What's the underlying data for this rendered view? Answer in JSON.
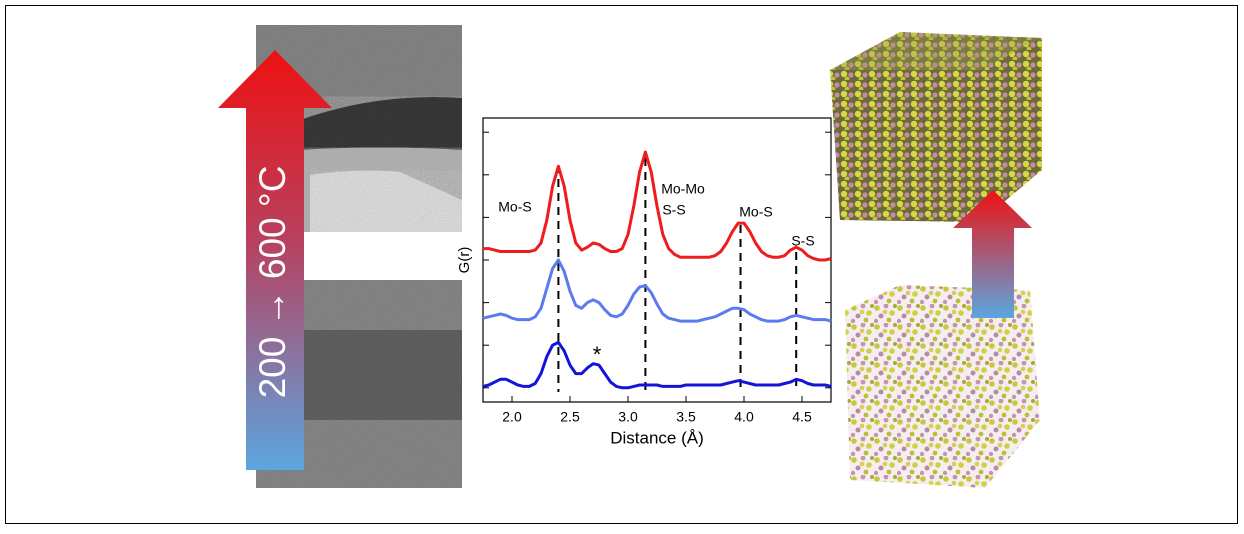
{
  "arrow_label": "200 → 600 °C",
  "chart_data": {
    "type": "line",
    "xlabel": "Distance (Å)",
    "ylabel": "G(r)",
    "xlim": [
      1.75,
      4.75
    ],
    "xticks": [
      {
        "value": 2,
        "label": "2.0"
      },
      2.5,
      {
        "value": 3,
        "label": "3.0"
      },
      3.5,
      {
        "value": 4,
        "label": "4.0"
      },
      4.5
    ],
    "ylim": [
      0,
      10
    ],
    "yticks": [
      0.5,
      2,
      3.5,
      5,
      6.5,
      8,
      9.5
    ],
    "x": [
      1.75,
      1.8,
      1.85,
      1.9,
      1.95,
      2.0,
      2.05,
      2.1,
      2.15,
      2.2,
      2.25,
      2.3,
      2.35,
      2.4,
      2.45,
      2.5,
      2.55,
      2.6,
      2.65,
      2.7,
      2.75,
      2.8,
      2.85,
      2.9,
      2.95,
      3.0,
      3.05,
      3.1,
      3.15,
      3.2,
      3.25,
      3.3,
      3.35,
      3.4,
      3.45,
      3.5,
      3.55,
      3.6,
      3.65,
      3.7,
      3.75,
      3.8,
      3.85,
      3.9,
      3.95,
      4.0,
      4.05,
      4.1,
      4.15,
      4.2,
      4.25,
      4.3,
      4.35,
      4.4,
      4.45,
      4.5,
      4.55,
      4.6,
      4.65,
      4.7,
      4.75
    ],
    "series": [
      {
        "color": "#ee1c1c",
        "values": [
          5.4,
          5.4,
          5.35,
          5.3,
          5.3,
          5.3,
          5.3,
          5.3,
          5.3,
          5.35,
          5.6,
          6.4,
          7.6,
          8.3,
          7.6,
          6.4,
          5.6,
          5.35,
          5.45,
          5.6,
          5.55,
          5.4,
          5.3,
          5.3,
          5.4,
          5.9,
          6.9,
          8.1,
          8.8,
          8.1,
          6.9,
          5.9,
          5.4,
          5.2,
          5.1,
          5.1,
          5.1,
          5.1,
          5.1,
          5.1,
          5.15,
          5.3,
          5.6,
          6.0,
          6.3,
          6.3,
          6.0,
          5.6,
          5.3,
          5.15,
          5.1,
          5.1,
          5.15,
          5.35,
          5.45,
          5.35,
          5.15,
          5.05,
          5.0,
          5.0,
          5.05
        ]
      },
      {
        "color": "#5b7bef",
        "values": [
          2.95,
          3.0,
          3.05,
          3.1,
          3.05,
          2.95,
          2.9,
          2.9,
          2.9,
          3.0,
          3.3,
          4.0,
          4.7,
          5.0,
          4.6,
          3.9,
          3.4,
          3.3,
          3.5,
          3.6,
          3.5,
          3.25,
          3.05,
          3.0,
          3.1,
          3.4,
          3.8,
          4.05,
          4.1,
          3.85,
          3.45,
          3.1,
          2.95,
          2.9,
          2.85,
          2.85,
          2.85,
          2.85,
          2.9,
          2.95,
          3.0,
          3.1,
          3.2,
          3.3,
          3.3,
          3.25,
          3.1,
          3.0,
          2.9,
          2.85,
          2.85,
          2.85,
          2.9,
          3.0,
          3.05,
          3.0,
          2.95,
          2.9,
          2.9,
          2.9,
          2.85
        ]
      },
      {
        "color": "#1414d8",
        "values": [
          0.55,
          0.6,
          0.7,
          0.8,
          0.8,
          0.7,
          0.6,
          0.55,
          0.55,
          0.65,
          1.0,
          1.6,
          2.0,
          2.1,
          1.8,
          1.3,
          1.0,
          1.0,
          1.2,
          1.35,
          1.3,
          1.0,
          0.7,
          0.55,
          0.5,
          0.5,
          0.55,
          0.6,
          0.6,
          0.6,
          0.6,
          0.55,
          0.55,
          0.55,
          0.55,
          0.6,
          0.6,
          0.6,
          0.6,
          0.6,
          0.6,
          0.6,
          0.65,
          0.7,
          0.75,
          0.7,
          0.65,
          0.6,
          0.6,
          0.6,
          0.6,
          0.6,
          0.65,
          0.7,
          0.8,
          0.75,
          0.65,
          0.6,
          0.6,
          0.6,
          0.55
        ]
      }
    ],
    "reference_lines": [
      2.4,
      3.15,
      3.97,
      4.45
    ],
    "annotations": [
      "Mo-S",
      "Mo-Mo",
      "S-S",
      "Mo-S",
      "S-S",
      "*"
    ]
  }
}
